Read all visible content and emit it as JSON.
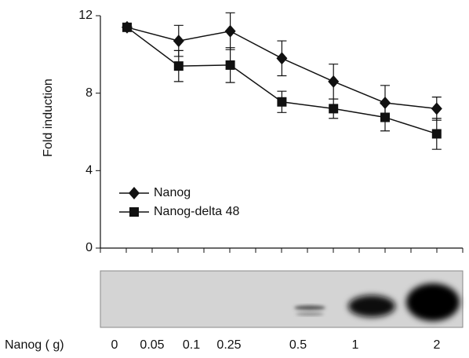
{
  "chart_data": {
    "type": "line",
    "y_label": "Fold induction",
    "x_label": "Nanog ( g)",
    "categories": [
      "0",
      "0.05",
      "0.1",
      "0.25",
      "0.5",
      "1",
      "2"
    ],
    "series": [
      {
        "name": "Nanog",
        "color": "#111111",
        "marker": "diamond",
        "values": [
          11.4,
          10.7,
          11.2,
          9.8,
          8.6,
          7.5,
          7.2
        ],
        "errors": [
          0.1,
          0.8,
          0.95,
          0.9,
          0.9,
          0.9,
          0.6
        ]
      },
      {
        "name": "Nanog-delta 48",
        "color": "#111111",
        "marker": "square",
        "values": [
          11.4,
          9.4,
          9.45,
          7.55,
          7.2,
          6.75,
          5.9
        ],
        "errors": [
          0.1,
          0.8,
          0.9,
          0.55,
          0.5,
          0.7,
          0.8
        ]
      }
    ],
    "ylim": [
      0,
      12
    ],
    "yticks": [
      0,
      4,
      8,
      12
    ],
    "legend": "lower left"
  }
}
